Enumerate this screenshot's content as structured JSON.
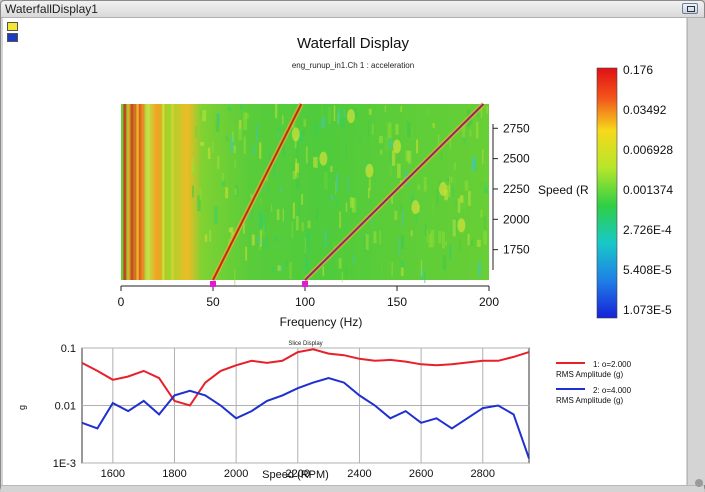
{
  "window": {
    "title": "WaterfallDisplay1"
  },
  "waterfall": {
    "title": "Waterfall Display",
    "subtitle": "eng_runup_in1.Ch 1 : acceleration",
    "xlabel": "Frequency (Hz)",
    "ylabel": "Speed (R",
    "x_ticks": [
      "0",
      "50",
      "100",
      "150",
      "200"
    ],
    "y_ticks": [
      "2750",
      "2500",
      "2250",
      "2000",
      "1750"
    ],
    "colorbar_labels": [
      "0.176",
      "0.03492",
      "0.006928",
      "0.001374",
      "2.726E-4",
      "5.408E-5",
      "1.073E-5"
    ],
    "markers": [
      50,
      100
    ]
  },
  "slice": {
    "title": "Slice Display",
    "xlabel": "Speed (RPM)",
    "ylabel": "g",
    "x_ticks": [
      "1600",
      "1800",
      "2000",
      "2200",
      "2400",
      "2600",
      "2800"
    ],
    "y_ticks": [
      "0.1",
      "0.01",
      "1E-3"
    ],
    "legend": [
      {
        "label": "1: o=2.000",
        "sub": "RMS Amplitude (g)",
        "color": "#e8202a"
      },
      {
        "label": "2: o=4.000",
        "sub": "RMS Amplitude (g)",
        "color": "#2030d0"
      }
    ]
  },
  "chart_data": [
    {
      "type": "heatmap",
      "title": "Waterfall Display",
      "subtitle": "eng_runup_in1.Ch 1 : acceleration",
      "xlabel": "Frequency (Hz)",
      "ylabel": "Speed (R",
      "xlim": [
        0,
        200
      ],
      "ylim": [
        1500,
        2950
      ],
      "colorbar": [
        "0.176",
        "0.03492",
        "0.006928",
        "0.001374",
        "2.726E-4",
        "5.408E-5",
        "1.073E-5"
      ],
      "order_lines": [
        {
          "order": 2,
          "from": [
            50,
            1500
          ],
          "to": [
            98,
            2950
          ]
        },
        {
          "order": 4,
          "from": [
            100,
            1500
          ],
          "to": [
            197,
            2950
          ]
        }
      ]
    },
    {
      "type": "line",
      "title": "Slice Display",
      "xlabel": "Speed (RPM)",
      "ylabel": "g",
      "xlim": [
        1500,
        2950
      ],
      "ylim": [
        0.001,
        0.1
      ],
      "yscale": "log",
      "series": [
        {
          "name": "1: o=2.000",
          "color": "#e8202a",
          "x": [
            1500,
            1550,
            1600,
            1650,
            1700,
            1750,
            1800,
            1850,
            1900,
            1950,
            2000,
            2050,
            2100,
            2150,
            2200,
            2250,
            2300,
            2350,
            2400,
            2450,
            2500,
            2550,
            2600,
            2650,
            2700,
            2750,
            2800,
            2850,
            2900,
            2950
          ],
          "values": [
            0.055,
            0.04,
            0.028,
            0.032,
            0.04,
            0.03,
            0.012,
            0.01,
            0.025,
            0.04,
            0.05,
            0.06,
            0.055,
            0.06,
            0.085,
            0.095,
            0.08,
            0.075,
            0.065,
            0.06,
            0.062,
            0.058,
            0.052,
            0.05,
            0.052,
            0.056,
            0.06,
            0.06,
            0.07,
            0.085
          ]
        },
        {
          "name": "2: o=4.000",
          "color": "#2030d0",
          "x": [
            1500,
            1550,
            1600,
            1650,
            1700,
            1750,
            1800,
            1850,
            1900,
            1950,
            2000,
            2050,
            2100,
            2150,
            2200,
            2250,
            2300,
            2350,
            2400,
            2450,
            2500,
            2550,
            2600,
            2650,
            2700,
            2750,
            2800,
            2850,
            2900,
            2950
          ],
          "values": [
            0.005,
            0.004,
            0.011,
            0.008,
            0.012,
            0.007,
            0.015,
            0.018,
            0.015,
            0.01,
            0.006,
            0.008,
            0.012,
            0.015,
            0.02,
            0.025,
            0.03,
            0.025,
            0.015,
            0.01,
            0.006,
            0.008,
            0.005,
            0.006,
            0.004,
            0.006,
            0.009,
            0.01,
            0.007,
            0.0012
          ]
        }
      ]
    }
  ]
}
